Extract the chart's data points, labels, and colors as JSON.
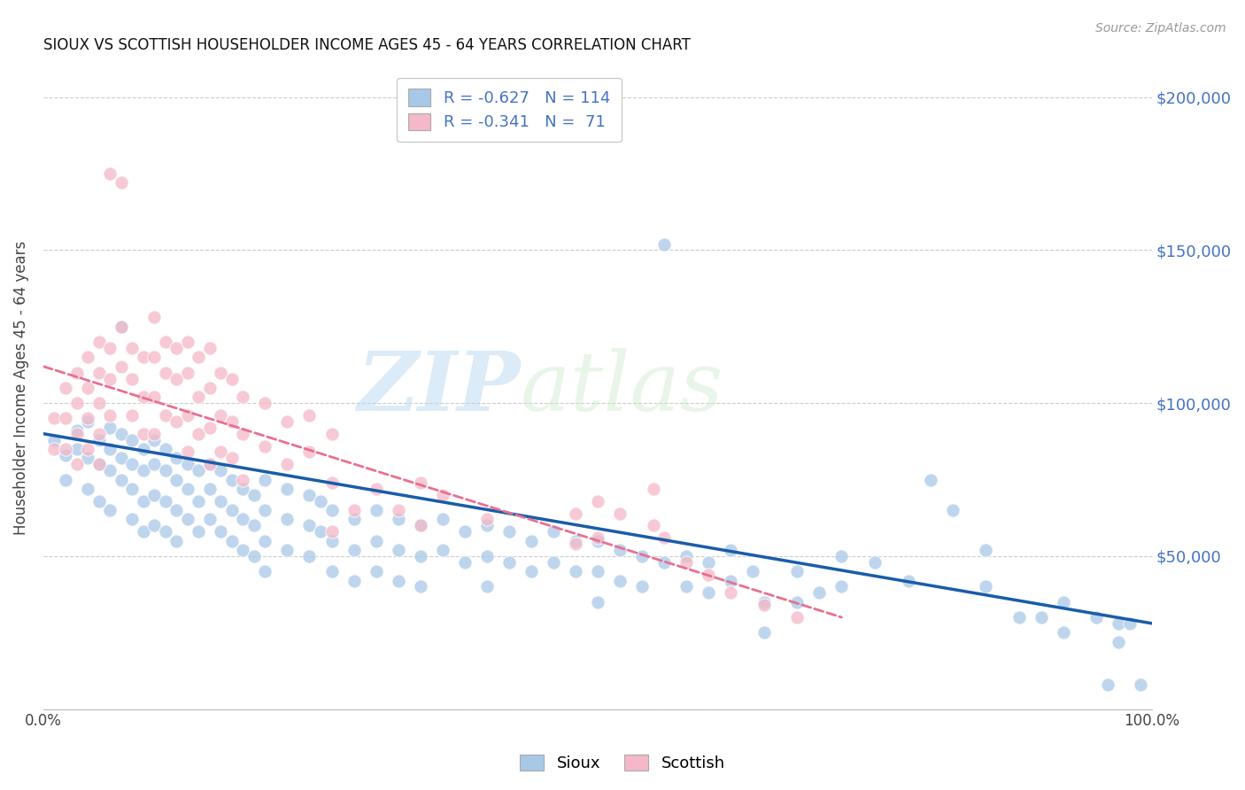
{
  "title": "SIOUX VS SCOTTISH HOUSEHOLDER INCOME AGES 45 - 64 YEARS CORRELATION CHART",
  "source": "Source: ZipAtlas.com",
  "ylabel": "Householder Income Ages 45 - 64 years",
  "xlim": [
    0.0,
    1.0
  ],
  "ylim": [
    0,
    210000
  ],
  "yticks": [
    0,
    50000,
    100000,
    150000,
    200000
  ],
  "right_ytick_labels": [
    "$50,000",
    "$100,000",
    "$150,000",
    "$200,000"
  ],
  "right_yticks": [
    50000,
    100000,
    150000,
    200000
  ],
  "sioux_color": "#a8c8e8",
  "scottish_color": "#f4b8c8",
  "sioux_line_color": "#1a5ca8",
  "scottish_line_color": "#e87090",
  "watermark_zip": "ZIP",
  "watermark_atlas": "atlas",
  "sioux_line_x0": 0.0,
  "sioux_line_y0": 90000,
  "sioux_line_x1": 1.0,
  "sioux_line_y1": 28000,
  "scottish_line_x0": 0.0,
  "scottish_line_y0": 112000,
  "scottish_line_x1": 0.72,
  "scottish_line_y1": 30000,
  "sioux_scatter": [
    [
      0.01,
      88000
    ],
    [
      0.02,
      83000
    ],
    [
      0.02,
      75000
    ],
    [
      0.03,
      91000
    ],
    [
      0.03,
      85000
    ],
    [
      0.04,
      94000
    ],
    [
      0.04,
      82000
    ],
    [
      0.04,
      72000
    ],
    [
      0.05,
      88000
    ],
    [
      0.05,
      80000
    ],
    [
      0.05,
      68000
    ],
    [
      0.06,
      92000
    ],
    [
      0.06,
      85000
    ],
    [
      0.06,
      78000
    ],
    [
      0.06,
      65000
    ],
    [
      0.07,
      90000
    ],
    [
      0.07,
      82000
    ],
    [
      0.07,
      75000
    ],
    [
      0.07,
      125000
    ],
    [
      0.08,
      88000
    ],
    [
      0.08,
      80000
    ],
    [
      0.08,
      72000
    ],
    [
      0.08,
      62000
    ],
    [
      0.09,
      85000
    ],
    [
      0.09,
      78000
    ],
    [
      0.09,
      68000
    ],
    [
      0.09,
      58000
    ],
    [
      0.1,
      88000
    ],
    [
      0.1,
      80000
    ],
    [
      0.1,
      70000
    ],
    [
      0.1,
      60000
    ],
    [
      0.11,
      85000
    ],
    [
      0.11,
      78000
    ],
    [
      0.11,
      68000
    ],
    [
      0.11,
      58000
    ],
    [
      0.12,
      82000
    ],
    [
      0.12,
      75000
    ],
    [
      0.12,
      65000
    ],
    [
      0.12,
      55000
    ],
    [
      0.13,
      80000
    ],
    [
      0.13,
      72000
    ],
    [
      0.13,
      62000
    ],
    [
      0.14,
      78000
    ],
    [
      0.14,
      68000
    ],
    [
      0.14,
      58000
    ],
    [
      0.15,
      80000
    ],
    [
      0.15,
      72000
    ],
    [
      0.15,
      62000
    ],
    [
      0.16,
      78000
    ],
    [
      0.16,
      68000
    ],
    [
      0.16,
      58000
    ],
    [
      0.17,
      75000
    ],
    [
      0.17,
      65000
    ],
    [
      0.17,
      55000
    ],
    [
      0.18,
      72000
    ],
    [
      0.18,
      62000
    ],
    [
      0.18,
      52000
    ],
    [
      0.19,
      70000
    ],
    [
      0.19,
      60000
    ],
    [
      0.19,
      50000
    ],
    [
      0.2,
      75000
    ],
    [
      0.2,
      65000
    ],
    [
      0.2,
      55000
    ],
    [
      0.2,
      45000
    ],
    [
      0.22,
      72000
    ],
    [
      0.22,
      62000
    ],
    [
      0.22,
      52000
    ],
    [
      0.24,
      70000
    ],
    [
      0.24,
      60000
    ],
    [
      0.24,
      50000
    ],
    [
      0.25,
      68000
    ],
    [
      0.25,
      58000
    ],
    [
      0.26,
      65000
    ],
    [
      0.26,
      55000
    ],
    [
      0.26,
      45000
    ],
    [
      0.28,
      62000
    ],
    [
      0.28,
      52000
    ],
    [
      0.28,
      42000
    ],
    [
      0.3,
      65000
    ],
    [
      0.3,
      55000
    ],
    [
      0.3,
      45000
    ],
    [
      0.32,
      62000
    ],
    [
      0.32,
      52000
    ],
    [
      0.32,
      42000
    ],
    [
      0.34,
      60000
    ],
    [
      0.34,
      50000
    ],
    [
      0.34,
      40000
    ],
    [
      0.36,
      62000
    ],
    [
      0.36,
      52000
    ],
    [
      0.38,
      58000
    ],
    [
      0.38,
      48000
    ],
    [
      0.4,
      60000
    ],
    [
      0.4,
      50000
    ],
    [
      0.4,
      40000
    ],
    [
      0.42,
      58000
    ],
    [
      0.42,
      48000
    ],
    [
      0.44,
      55000
    ],
    [
      0.44,
      45000
    ],
    [
      0.46,
      58000
    ],
    [
      0.46,
      48000
    ],
    [
      0.48,
      55000
    ],
    [
      0.48,
      45000
    ],
    [
      0.5,
      55000
    ],
    [
      0.5,
      45000
    ],
    [
      0.5,
      35000
    ],
    [
      0.52,
      52000
    ],
    [
      0.52,
      42000
    ],
    [
      0.54,
      50000
    ],
    [
      0.54,
      40000
    ],
    [
      0.56,
      152000
    ],
    [
      0.56,
      48000
    ],
    [
      0.58,
      50000
    ],
    [
      0.58,
      40000
    ],
    [
      0.6,
      48000
    ],
    [
      0.6,
      38000
    ],
    [
      0.62,
      52000
    ],
    [
      0.62,
      42000
    ],
    [
      0.64,
      45000
    ],
    [
      0.65,
      35000
    ],
    [
      0.65,
      25000
    ],
    [
      0.68,
      45000
    ],
    [
      0.68,
      35000
    ],
    [
      0.7,
      38000
    ],
    [
      0.72,
      50000
    ],
    [
      0.72,
      40000
    ],
    [
      0.75,
      48000
    ],
    [
      0.78,
      42000
    ],
    [
      0.8,
      75000
    ],
    [
      0.82,
      65000
    ],
    [
      0.85,
      52000
    ],
    [
      0.85,
      40000
    ],
    [
      0.88,
      30000
    ],
    [
      0.9,
      30000
    ],
    [
      0.92,
      35000
    ],
    [
      0.92,
      25000
    ],
    [
      0.95,
      30000
    ],
    [
      0.96,
      8000
    ],
    [
      0.97,
      28000
    ],
    [
      0.97,
      22000
    ],
    [
      0.98,
      28000
    ],
    [
      0.99,
      8000
    ]
  ],
  "scottish_scatter": [
    [
      0.01,
      95000
    ],
    [
      0.01,
      85000
    ],
    [
      0.02,
      105000
    ],
    [
      0.02,
      95000
    ],
    [
      0.02,
      85000
    ],
    [
      0.03,
      110000
    ],
    [
      0.03,
      100000
    ],
    [
      0.03,
      90000
    ],
    [
      0.03,
      80000
    ],
    [
      0.04,
      115000
    ],
    [
      0.04,
      105000
    ],
    [
      0.04,
      95000
    ],
    [
      0.04,
      85000
    ],
    [
      0.05,
      120000
    ],
    [
      0.05,
      110000
    ],
    [
      0.05,
      100000
    ],
    [
      0.05,
      90000
    ],
    [
      0.05,
      80000
    ],
    [
      0.06,
      175000
    ],
    [
      0.06,
      118000
    ],
    [
      0.06,
      108000
    ],
    [
      0.06,
      96000
    ],
    [
      0.07,
      172000
    ],
    [
      0.07,
      125000
    ],
    [
      0.07,
      112000
    ],
    [
      0.08,
      118000
    ],
    [
      0.08,
      108000
    ],
    [
      0.08,
      96000
    ],
    [
      0.09,
      115000
    ],
    [
      0.09,
      102000
    ],
    [
      0.09,
      90000
    ],
    [
      0.1,
      128000
    ],
    [
      0.1,
      115000
    ],
    [
      0.1,
      102000
    ],
    [
      0.1,
      90000
    ],
    [
      0.11,
      120000
    ],
    [
      0.11,
      110000
    ],
    [
      0.11,
      96000
    ],
    [
      0.12,
      118000
    ],
    [
      0.12,
      108000
    ],
    [
      0.12,
      94000
    ],
    [
      0.13,
      120000
    ],
    [
      0.13,
      110000
    ],
    [
      0.13,
      96000
    ],
    [
      0.13,
      84000
    ],
    [
      0.14,
      115000
    ],
    [
      0.14,
      102000
    ],
    [
      0.14,
      90000
    ],
    [
      0.15,
      118000
    ],
    [
      0.15,
      105000
    ],
    [
      0.15,
      92000
    ],
    [
      0.15,
      80000
    ],
    [
      0.16,
      110000
    ],
    [
      0.16,
      96000
    ],
    [
      0.16,
      84000
    ],
    [
      0.17,
      108000
    ],
    [
      0.17,
      94000
    ],
    [
      0.17,
      82000
    ],
    [
      0.18,
      102000
    ],
    [
      0.18,
      90000
    ],
    [
      0.18,
      75000
    ],
    [
      0.2,
      100000
    ],
    [
      0.2,
      86000
    ],
    [
      0.22,
      94000
    ],
    [
      0.22,
      80000
    ],
    [
      0.24,
      96000
    ],
    [
      0.24,
      84000
    ],
    [
      0.26,
      90000
    ],
    [
      0.26,
      74000
    ],
    [
      0.26,
      58000
    ],
    [
      0.28,
      65000
    ],
    [
      0.3,
      72000
    ],
    [
      0.32,
      65000
    ],
    [
      0.34,
      74000
    ],
    [
      0.34,
      60000
    ],
    [
      0.36,
      70000
    ],
    [
      0.4,
      62000
    ],
    [
      0.48,
      64000
    ],
    [
      0.48,
      54000
    ],
    [
      0.5,
      68000
    ],
    [
      0.5,
      56000
    ],
    [
      0.52,
      64000
    ],
    [
      0.55,
      72000
    ],
    [
      0.55,
      60000
    ],
    [
      0.56,
      56000
    ],
    [
      0.58,
      48000
    ],
    [
      0.6,
      44000
    ],
    [
      0.62,
      38000
    ],
    [
      0.65,
      34000
    ],
    [
      0.68,
      30000
    ]
  ]
}
